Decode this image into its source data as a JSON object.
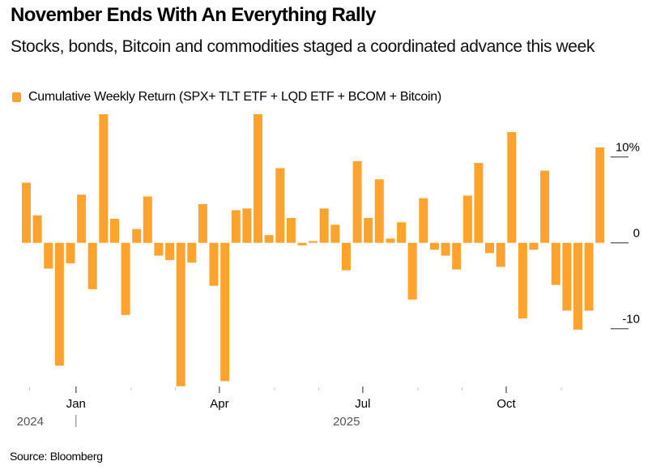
{
  "header": {
    "title": "November Ends With An Everything Rally",
    "subtitle": "Stocks, bonds, Bitcoin and commodities staged a coordinated advance this week"
  },
  "legend": {
    "label": "Cumulative Weekly Return (SPX+ TLT ETF + LQD ETF + BCOM + Bitcoin)",
    "color": "#FFA32F"
  },
  "footer": {
    "source": "Source: Bloomberg"
  },
  "chart_data": {
    "type": "bar",
    "title": "November Ends With An Everything Rally",
    "subtitle": "Stocks, bonds, Bitcoin and commodities staged a coordinated advance this week",
    "xlabel": "",
    "ylabel": "",
    "ylim": [
      -17,
      15
    ],
    "y_ticks": [
      {
        "value": 10,
        "label": "10%"
      },
      {
        "value": 0,
        "label": "0"
      },
      {
        "value": -10,
        "label": "-10"
      }
    ],
    "x_major_ticks": [
      {
        "week_index": 4.5,
        "label": "Jan"
      },
      {
        "week_index": 17.5,
        "label": "Apr"
      },
      {
        "week_index": 30.5,
        "label": "Jul"
      },
      {
        "week_index": 43.5,
        "label": "Oct"
      }
    ],
    "x_minor_ticks": [
      0.3,
      9.5,
      13.5,
      22.5,
      26.5,
      35.5,
      39.5,
      48.5
    ],
    "year_labels": [
      {
        "week_index": 0.5,
        "label": "2024",
        "divider": true
      },
      {
        "week_index": 27.8,
        "label": "2025",
        "divider": false
      }
    ],
    "grid": false,
    "legend_position": "top-left",
    "series": [
      {
        "name": "Cumulative Weekly Return (SPX+ TLT ETF + LQD ETF + BCOM + Bitcoin)",
        "color": "#FFA32F",
        "values": [
          7.0,
          3.2,
          -3.0,
          -14.3,
          -2.4,
          5.6,
          -5.4,
          15.0,
          2.8,
          -8.4,
          1.6,
          5.4,
          -1.5,
          -2.0,
          -16.7,
          -2.3,
          4.5,
          -5.0,
          -16.1,
          3.8,
          4.0,
          15.0,
          0.9,
          8.7,
          2.9,
          -0.3,
          0.2,
          4.0,
          2.1,
          -3.2,
          9.5,
          2.9,
          7.4,
          0.5,
          2.4,
          -6.6,
          5.2,
          -0.8,
          -1.5,
          -3.1,
          5.5,
          9.3,
          -1.2,
          -2.8,
          12.9,
          -8.8,
          -0.8,
          8.4,
          -4.9,
          -7.9,
          -10.1,
          -7.9,
          11.1
        ]
      }
    ]
  }
}
